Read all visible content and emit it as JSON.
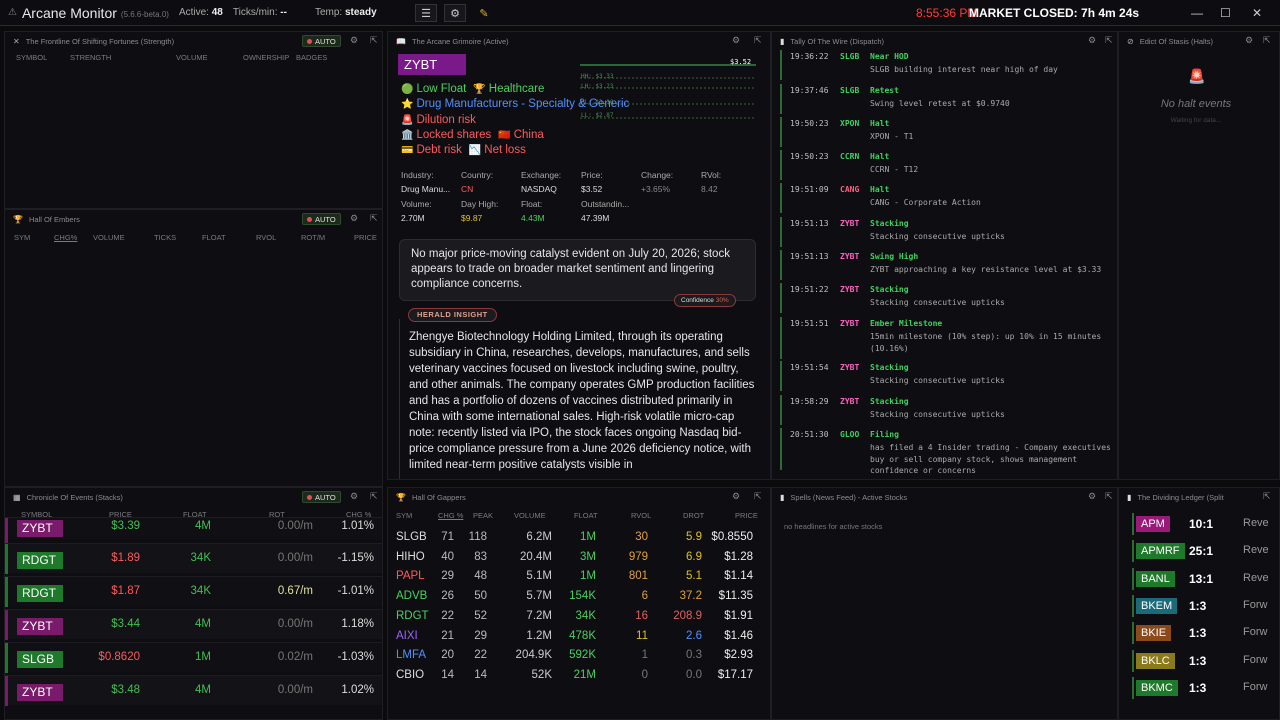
{
  "topbar": {
    "app": "Arcane Monitor",
    "version": "(5.6.6-beta.0)",
    "active_label": "Active:",
    "active": "48",
    "ticks_label": "Ticks/min:",
    "ticks": "--",
    "temp_label": "Temp:",
    "temp": "steady",
    "clock": "8:55:36 PM",
    "market": "MARKET CLOSED:",
    "countdown": "7h 4m 24s"
  },
  "strength": {
    "title": "The Frontline Of Shifting Fortunes (Strength)",
    "auto": "AUTO",
    "cols": [
      "SYMBOL",
      "STRENGTH",
      "VOLUME",
      "OWNERSHIP",
      "BADGES"
    ]
  },
  "embers": {
    "title": "Hall Of Embers",
    "auto": "AUTO",
    "cols": [
      "SYM",
      "CHG%",
      "VOLUME",
      "TICKS",
      "FLOAT",
      "RVOL",
      "ROT/M",
      "PRICE"
    ]
  },
  "events": {
    "title": "Chronicle Of Events (Stacks)",
    "auto": "AUTO",
    "cols": [
      "SYMBOL",
      "PRICE",
      "FLOAT",
      "ROT",
      "CHG %"
    ],
    "rows": [
      {
        "sym": "ZYBT",
        "price": "$3.39",
        "float": "4M",
        "rot": "0.00/m",
        "chg": "1.01%",
        "bg": "#7a1a6a",
        "pc": "#40c050",
        "cc": "#ddd"
      },
      {
        "sym": "RDGT",
        "price": "$1.89",
        "float": "34K",
        "rot": "0.00/m",
        "chg": "-1.15%",
        "bg": "#1e7a2a",
        "pc": "#ff5a5a",
        "cc": "#ddd"
      },
      {
        "sym": "RDGT",
        "price": "$1.87",
        "float": "34K",
        "rot": "0.67/m",
        "chg": "-1.01%",
        "bg": "#1e7a2a",
        "pc": "#ff5a5a",
        "cc": "#ddd"
      },
      {
        "sym": "ZYBT",
        "price": "$3.44",
        "float": "4M",
        "rot": "0.00/m",
        "chg": "1.18%",
        "bg": "#7a1a6a",
        "pc": "#40c050",
        "cc": "#ddd"
      },
      {
        "sym": "SLGB",
        "price": "$0.8620",
        "float": "1M",
        "rot": "0.02/m",
        "chg": "-1.03%",
        "bg": "#1e7a2a",
        "pc": "#ff5a5a",
        "cc": "#ddd"
      },
      {
        "sym": "ZYBT",
        "price": "$3.48",
        "float": "4M",
        "rot": "0.00/m",
        "chg": "1.02%",
        "bg": "#7a1a6a",
        "pc": "#40c050",
        "cc": "#ddd"
      }
    ]
  },
  "grimoire": {
    "title": "The Arcane Grimoire (Active)",
    "symbol": "ZYBT",
    "chart_price": "$3.52",
    "chart_lines": [
      "HH: $3.33",
      "LH: $3.23",
      "HL: $3.10",
      "LL: $2.87"
    ],
    "tags": [
      {
        "icon": "🟢",
        "text": "Low Float",
        "color": "#4ad060"
      },
      {
        "icon": "🏆",
        "text": "Healthcare",
        "color": "#4ad060"
      },
      {
        "icon": "⭐",
        "text": "Drug Manufacturers - Specialty & Generic",
        "color": "#5090ff"
      },
      {
        "icon": "🚨",
        "text": "Dilution risk",
        "color": "#ff5a5a"
      },
      {
        "icon": "🏛️",
        "text": "Locked shares",
        "color": "#ff5a5a"
      },
      {
        "icon": "🇨🇳",
        "text": "China",
        "color": "#ff5a5a"
      },
      {
        "icon": "💳",
        "text": "Debt risk",
        "color": "#ff5a5a"
      },
      {
        "icon": "📉",
        "text": "Net loss",
        "color": "#ff5a5a"
      }
    ],
    "stats1": [
      {
        "l": "Industry:",
        "v": "Drug Manu...",
        "c": "#ddd"
      },
      {
        "l": "Country:",
        "v": "CN",
        "c": "#ff5a5a"
      },
      {
        "l": "Exchange:",
        "v": "NASDAQ",
        "c": "#ddd"
      },
      {
        "l": "Price:",
        "v": "$3.52",
        "c": "#ddd"
      },
      {
        "l": "Change:",
        "v": "+3.65%",
        "c": "#888"
      },
      {
        "l": "RVol:",
        "v": "8.42",
        "c": "#888"
      }
    ],
    "stats2": [
      {
        "l": "Volume:",
        "v": "2.70M",
        "c": "#ddd"
      },
      {
        "l": "Day High:",
        "v": "$9.87",
        "c": "#e0c020"
      },
      {
        "l": "Float:",
        "v": "4.43M",
        "c": "#4ad060"
      },
      {
        "l": "Outstandin...",
        "v": "47.39M",
        "c": "#ddd"
      }
    ],
    "catalyst": "No major price-moving catalyst evident on July 20, 2026; stock appears to trade on broader market sentiment and lingering compliance concerns.",
    "confidence": "Confidence",
    "confidence_val": "30%",
    "herald": "HERALD INSIGHT",
    "insight": "Zhengye Biotechnology Holding Limited, through its operating subsidiary in China, researches, develops, manufactures, and sells veterinary vaccines focused on livestock including swine, poultry, and other animals. The company operates GMP production facilities and has a portfolio of dozens of vaccines distributed primarily in China with some international sales. High-risk volatile micro-cap note: recently listed via IPO, the stock faces ongoing Nasdaq bid-price compliance pressure from a June 2026 deficiency notice, with limited near-term positive catalysts visible in"
  },
  "gappers": {
    "title": "Hall Of Gappers",
    "cols": [
      "SYM",
      "CHG %",
      "PEAK",
      "VOLUME",
      "FLOAT",
      "RVOL",
      "DROT",
      "PRICE"
    ],
    "rows": [
      {
        "sym": "SLGB",
        "chg": "71",
        "peak": "118",
        "vol": "6.2M",
        "float": "1M",
        "rvol": "30",
        "drot": "5.9",
        "price": "$0.8550",
        "sc": "#ddd",
        "fc": "#4ad060",
        "rc": "#e0a040",
        "dc": "#e0c020"
      },
      {
        "sym": "HIHO",
        "chg": "40",
        "peak": "83",
        "vol": "20.4M",
        "float": "3M",
        "rvol": "979",
        "drot": "6.9",
        "price": "$1.28",
        "sc": "#ddd",
        "fc": "#4ad060",
        "rc": "#e0a040",
        "dc": "#e0c020"
      },
      {
        "sym": "PAPL",
        "chg": "29",
        "peak": "48",
        "vol": "5.1M",
        "float": "1M",
        "rvol": "801",
        "drot": "5.1",
        "price": "$1.14",
        "sc": "#ff5a5a",
        "fc": "#4ad060",
        "rc": "#e0a040",
        "dc": "#e0c020"
      },
      {
        "sym": "ADVB",
        "chg": "26",
        "peak": "50",
        "vol": "5.7M",
        "float": "154K",
        "rvol": "6",
        "drot": "37.2",
        "price": "$11.35",
        "sc": "#4ad060",
        "fc": "#4ad060",
        "rc": "#e0a040",
        "dc": "#e0a040"
      },
      {
        "sym": "RDGT",
        "chg": "22",
        "peak": "52",
        "vol": "7.2M",
        "float": "34K",
        "rvol": "16",
        "drot": "208.9",
        "price": "$1.91",
        "sc": "#4ad060",
        "fc": "#4ad060",
        "rc": "#e06060",
        "dc": "#e06060"
      },
      {
        "sym": "AIXI",
        "chg": "21",
        "peak": "29",
        "vol": "1.2M",
        "float": "478K",
        "rvol": "11",
        "drot": "2.6",
        "price": "$1.46",
        "sc": "#a060ff",
        "fc": "#4ad060",
        "rc": "#e0c020",
        "dc": "#5090ff"
      },
      {
        "sym": "LMFA",
        "chg": "20",
        "peak": "22",
        "vol": "204.9K",
        "float": "592K",
        "rvol": "1",
        "drot": "0.3",
        "price": "$2.93",
        "sc": "#5090ff",
        "fc": "#4ad060",
        "rc": "#777",
        "dc": "#777"
      },
      {
        "sym": "CBIO",
        "chg": "14",
        "peak": "14",
        "vol": "52K",
        "float": "21M",
        "rvol": "0",
        "drot": "0.0",
        "price": "$17.17",
        "sc": "#ddd",
        "fc": "#4ad060",
        "rc": "#777",
        "dc": "#777"
      }
    ]
  },
  "wire": {
    "title": "Tally Of The Wire (Dispatch)",
    "items": [
      {
        "t": "19:36:22",
        "s": "SLGB",
        "k": "Near HOD",
        "d": "SLGB building interest near high of day"
      },
      {
        "t": "19:37:46",
        "s": "SLGB",
        "k": "Retest",
        "d": "Swing level retest at $0.9740"
      },
      {
        "t": "19:50:23",
        "s": "XPON",
        "k": "Halt",
        "d": "XPON - T1"
      },
      {
        "t": "19:50:23",
        "s": "CCRN",
        "k": "Halt",
        "d": "CCRN - T12"
      },
      {
        "t": "19:51:09",
        "s": "CANG",
        "k": "Halt",
        "d": "CANG - Corporate Action"
      },
      {
        "t": "19:51:13",
        "s": "ZYBT",
        "k": "Stacking",
        "d": "Stacking consecutive upticks"
      },
      {
        "t": "19:51:13",
        "s": "ZYBT",
        "k": "Swing High",
        "d": "ZYBT approaching a key resistance level at $3.33"
      },
      {
        "t": "19:51:22",
        "s": "ZYBT",
        "k": "Stacking",
        "d": "Stacking consecutive upticks"
      },
      {
        "t": "19:51:51",
        "s": "ZYBT",
        "k": "Ember Milestone",
        "d": "15min milestone (10% step): up 10% in 15 minutes (10.16%)"
      },
      {
        "t": "19:51:54",
        "s": "ZYBT",
        "k": "Stacking",
        "d": "Stacking consecutive upticks"
      },
      {
        "t": "19:58:29",
        "s": "ZYBT",
        "k": "Stacking",
        "d": "Stacking consecutive upticks"
      },
      {
        "t": "20:51:30",
        "s": "GLOO",
        "k": "Filing",
        "d": "has filed a 4 Insider trading - Company executives buy or sell company stock, shows management confidence or concerns"
      }
    ]
  },
  "halts": {
    "title": "Edict Of Stasis (Halts)",
    "empty": "No halt events",
    "sub": "Waiting for data..."
  },
  "spells": {
    "title": "Spells (News Feed) - Active Stocks",
    "empty": "no headlines for active stocks"
  },
  "ledger": {
    "title": "The Dividing Ledger (Split",
    "rows": [
      {
        "sym": "APM",
        "ratio": "10:1",
        "type": "Reve",
        "bg": "#9a1a7a"
      },
      {
        "sym": "APMRF",
        "ratio": "25:1",
        "type": "Reve",
        "bg": "#1e7a2a"
      },
      {
        "sym": "BANL",
        "ratio": "13:1",
        "type": "Reve",
        "bg": "#1e7a2a"
      },
      {
        "sym": "BKEM",
        "ratio": "1:3",
        "type": "Forw",
        "bg": "#1a6a7a"
      },
      {
        "sym": "BKIE",
        "ratio": "1:3",
        "type": "Forw",
        "bg": "#8a4a1a"
      },
      {
        "sym": "BKLC",
        "ratio": "1:3",
        "type": "Forw",
        "bg": "#8a7a1a"
      },
      {
        "sym": "BKMC",
        "ratio": "1:3",
        "type": "Forw",
        "bg": "#1e7a2a"
      }
    ]
  }
}
